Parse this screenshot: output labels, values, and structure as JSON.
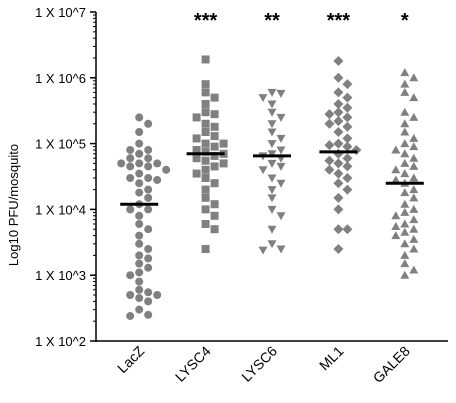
{
  "chart_data": {
    "type": "scatter",
    "scale": "log",
    "ylabel": "Log10 PFU/mosquito",
    "ylim": [
      100,
      10000000
    ],
    "yticks": [
      {
        "value": 100,
        "label": "1 X 10^2"
      },
      {
        "value": 1000,
        "label": "1 X 10^3"
      },
      {
        "value": 10000,
        "label": "1 X 10^4"
      },
      {
        "value": 100000,
        "label": "1 X 10^5"
      },
      {
        "value": 1000000,
        "label": "1 X 10^6"
      },
      {
        "value": 10000000,
        "label": "1 X 10^7"
      }
    ],
    "categories": [
      "LacZ",
      "LYSC4",
      "LYSC6",
      "ML1",
      "GALE8"
    ],
    "series": [
      {
        "category": "LacZ",
        "marker": "circle",
        "significance": "",
        "median": 12000,
        "values": [
          250000,
          200000,
          150000,
          100000,
          80000,
          80000,
          70000,
          60000,
          60000,
          50000,
          50000,
          50000,
          45000,
          45000,
          40000,
          35000,
          30000,
          30000,
          28000,
          25000,
          20000,
          18000,
          15000,
          12000,
          10000,
          10000,
          8000,
          6000,
          5000,
          4000,
          3000,
          2500,
          2000,
          1800,
          1500,
          1300,
          1100,
          1000,
          800,
          600,
          550,
          500,
          500,
          450,
          400,
          300,
          250,
          240
        ]
      },
      {
        "category": "LYSC4",
        "marker": "square",
        "significance": "***",
        "median": 70000,
        "values": [
          1900000,
          800000,
          600000,
          500000,
          400000,
          300000,
          280000,
          250000,
          200000,
          180000,
          150000,
          130000,
          120000,
          100000,
          100000,
          90000,
          80000,
          75000,
          70000,
          65000,
          60000,
          55000,
          50000,
          45000,
          40000,
          35000,
          30000,
          25000,
          20000,
          15000,
          12000,
          10000,
          8000,
          6000,
          5000,
          2500
        ]
      },
      {
        "category": "LYSC6",
        "marker": "triangle-down",
        "significance": "**",
        "median": 65000,
        "values": [
          600000,
          580000,
          500000,
          400000,
          300000,
          250000,
          200000,
          150000,
          120000,
          100000,
          80000,
          70000,
          65000,
          60000,
          50000,
          45000,
          40000,
          30000,
          25000,
          20000,
          15000,
          10000,
          8000,
          5000,
          3000,
          2500,
          2400
        ]
      },
      {
        "category": "ML1",
        "marker": "diamond",
        "significance": "***",
        "median": 75000,
        "values": [
          1800000,
          1000000,
          800000,
          600000,
          500000,
          400000,
          350000,
          300000,
          280000,
          250000,
          220000,
          200000,
          180000,
          150000,
          120000,
          100000,
          95000,
          90000,
          80000,
          70000,
          60000,
          55000,
          50000,
          45000,
          40000,
          35000,
          30000,
          25000,
          20000,
          15000,
          10000,
          5000,
          5000,
          2500
        ]
      },
      {
        "category": "GALE8",
        "marker": "triangle-up",
        "significance": "*",
        "median": 25000,
        "values": [
          1200000,
          1000000,
          800000,
          600000,
          500000,
          300000,
          250000,
          200000,
          150000,
          120000,
          100000,
          90000,
          80000,
          70000,
          60000,
          50000,
          45000,
          40000,
          35000,
          30000,
          28000,
          25000,
          20000,
          18000,
          15000,
          12000,
          10000,
          9000,
          8000,
          7000,
          6000,
          5500,
          5000,
          4500,
          4000,
          3500,
          3000,
          2500,
          2000,
          1500,
          1200,
          1000
        ]
      }
    ]
  }
}
